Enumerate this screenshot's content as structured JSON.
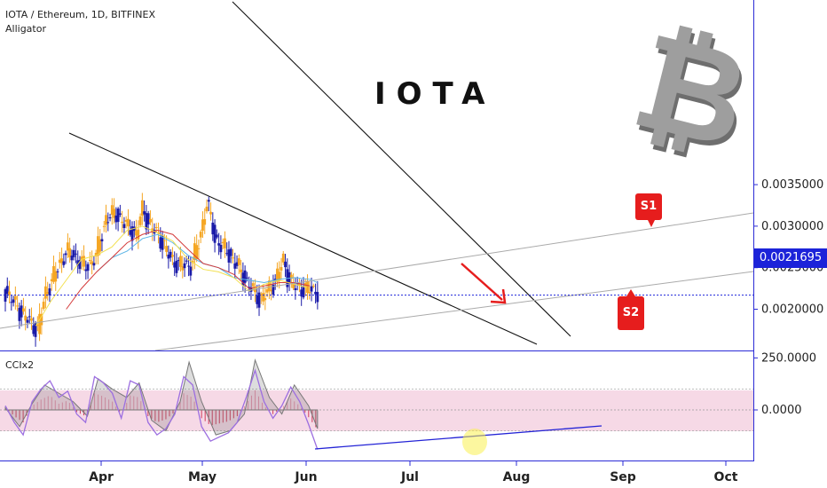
{
  "header": {
    "symbol": "IOTA / Ethereum, 1D, BITFINEX",
    "indicator": "Alligator"
  },
  "watermark_text": "IOTA",
  "btc_symbol": "₿",
  "annotations": {
    "s1": "S1",
    "s2": "S2"
  },
  "colors": {
    "bull": "#f5a623",
    "bear": "#1a1aa8",
    "alligator_jaw": "#5ab4e6",
    "alligator_teeth": "#d43c3c",
    "alligator_lips": "#f2e050",
    "axis": "#2b2bd6",
    "tag": "#e61d1d",
    "cci_band": "#f6d9e6"
  },
  "chart_data": [
    {
      "type": "candlestick",
      "title": "IOTA / Ethereum, 1D, BITFINEX",
      "ylim": [
        0.0015,
        0.0039
      ],
      "yticks": [
        "0.0035000",
        "0.0030000",
        "0.0025000",
        "0.0020000"
      ],
      "ytick_values": [
        0.0035,
        0.003,
        0.0025,
        0.002
      ],
      "x_labels": [
        "Apr",
        "May",
        "Jun",
        "Jul",
        "Aug",
        "Sep",
        "Oct"
      ],
      "last_price": "0.0021695",
      "last_price_value": 0.0021695,
      "key_closes": [
        {
          "day": 0,
          "value": 0.00222
        },
        {
          "day": 5,
          "value": 0.00205
        },
        {
          "day": 10,
          "value": 0.0019
        },
        {
          "day": 16,
          "value": 0.00175
        },
        {
          "day": 20,
          "value": 0.0022
        },
        {
          "day": 25,
          "value": 0.00245
        },
        {
          "day": 30,
          "value": 0.0027
        },
        {
          "day": 35,
          "value": 0.00262
        },
        {
          "day": 40,
          "value": 0.0025
        },
        {
          "day": 45,
          "value": 0.00265
        },
        {
          "day": 50,
          "value": 0.0031
        },
        {
          "day": 55,
          "value": 0.00315
        },
        {
          "day": 60,
          "value": 0.003
        },
        {
          "day": 65,
          "value": 0.0029
        },
        {
          "day": 68,
          "value": 0.0032
        },
        {
          "day": 72,
          "value": 0.003
        },
        {
          "day": 77,
          "value": 0.00285
        },
        {
          "day": 82,
          "value": 0.0026
        },
        {
          "day": 87,
          "value": 0.00253
        },
        {
          "day": 92,
          "value": 0.00253
        },
        {
          "day": 96,
          "value": 0.0028
        },
        {
          "day": 100,
          "value": 0.0033
        },
        {
          "day": 104,
          "value": 0.00285
        },
        {
          "day": 108,
          "value": 0.00275
        },
        {
          "day": 113,
          "value": 0.0026
        },
        {
          "day": 118,
          "value": 0.0024
        },
        {
          "day": 122,
          "value": 0.00225
        },
        {
          "day": 126,
          "value": 0.00212
        },
        {
          "day": 130,
          "value": 0.0022
        },
        {
          "day": 134,
          "value": 0.00235
        },
        {
          "day": 138,
          "value": 0.00258
        },
        {
          "day": 140,
          "value": 0.0024
        },
        {
          "day": 143,
          "value": 0.00228
        },
        {
          "day": 147,
          "value": 0.00225
        },
        {
          "day": 151,
          "value": 0.00224
        },
        {
          "day": 155,
          "value": 0.00221
        }
      ],
      "alligator_jaw": [
        [
          60,
          0.00245
        ],
        [
          70,
          0.00262
        ],
        [
          80,
          0.0027
        ],
        [
          90,
          0.00285
        ],
        [
          100,
          0.0029
        ],
        [
          110,
          0.0028
        ],
        [
          120,
          0.00265
        ],
        [
          130,
          0.00255
        ],
        [
          140,
          0.0025
        ],
        [
          150,
          0.00238
        ],
        [
          160,
          0.00235
        ],
        [
          170,
          0.00232
        ],
        [
          180,
          0.00236
        ],
        [
          190,
          0.00238
        ],
        [
          200,
          0.00236
        ],
        [
          205,
          0.00232
        ]
      ],
      "alligator_teeth": [
        [
          40,
          0.002
        ],
        [
          50,
          0.00225
        ],
        [
          60,
          0.00245
        ],
        [
          70,
          0.00262
        ],
        [
          80,
          0.0028
        ],
        [
          90,
          0.0029
        ],
        [
          100,
          0.00295
        ],
        [
          110,
          0.0029
        ],
        [
          120,
          0.00272
        ],
        [
          130,
          0.00255
        ],
        [
          140,
          0.0025
        ],
        [
          150,
          0.00242
        ],
        [
          160,
          0.00225
        ],
        [
          170,
          0.00228
        ],
        [
          180,
          0.00232
        ],
        [
          190,
          0.00232
        ],
        [
          200,
          0.00228
        ]
      ],
      "alligator_lips": [
        [
          20,
          0.0018
        ],
        [
          30,
          0.0021
        ],
        [
          40,
          0.00235
        ],
        [
          50,
          0.0026
        ],
        [
          60,
          0.00265
        ],
        [
          70,
          0.00275
        ],
        [
          80,
          0.00295
        ],
        [
          90,
          0.003
        ],
        [
          100,
          0.00292
        ],
        [
          110,
          0.00282
        ],
        [
          120,
          0.0026
        ],
        [
          130,
          0.00248
        ],
        [
          140,
          0.00245
        ],
        [
          150,
          0.00238
        ],
        [
          160,
          0.00222
        ],
        [
          170,
          0.0023
        ],
        [
          180,
          0.00235
        ],
        [
          190,
          0.0023
        ],
        [
          198,
          0.00226
        ]
      ]
    },
    {
      "type": "line",
      "title": "CCIx2",
      "ylim": [
        -230,
        260
      ],
      "yticks": [
        "250.0000",
        "0.0000"
      ],
      "ytick_values": [
        250,
        0
      ],
      "band": [
        -100,
        100
      ],
      "cci_fast": [
        {
          "day": 0,
          "value": 20
        },
        {
          "day": 5,
          "value": -60
        },
        {
          "day": 10,
          "value": -120
        },
        {
          "day": 15,
          "value": 40
        },
        {
          "day": 20,
          "value": 100
        },
        {
          "day": 25,
          "value": 140
        },
        {
          "day": 30,
          "value": 60
        },
        {
          "day": 35,
          "value": 90
        },
        {
          "day": 40,
          "value": -20
        },
        {
          "day": 45,
          "value": -60
        },
        {
          "day": 50,
          "value": 160
        },
        {
          "day": 55,
          "value": 130
        },
        {
          "day": 60,
          "value": 80
        },
        {
          "day": 65,
          "value": -40
        },
        {
          "day": 70,
          "value": 140
        },
        {
          "day": 75,
          "value": 120
        },
        {
          "day": 80,
          "value": -60
        },
        {
          "day": 85,
          "value": -120
        },
        {
          "day": 90,
          "value": -90
        },
        {
          "day": 95,
          "value": -20
        },
        {
          "day": 100,
          "value": 160
        },
        {
          "day": 105,
          "value": 120
        },
        {
          "day": 110,
          "value": -80
        },
        {
          "day": 115,
          "value": -150
        },
        {
          "day": 120,
          "value": -130
        },
        {
          "day": 125,
          "value": -110
        },
        {
          "day": 130,
          "value": -60
        },
        {
          "day": 135,
          "value": 60
        },
        {
          "day": 140,
          "value": 190
        },
        {
          "day": 145,
          "value": 40
        },
        {
          "day": 150,
          "value": -40
        },
        {
          "day": 155,
          "value": 20
        },
        {
          "day": 160,
          "value": 110
        },
        {
          "day": 165,
          "value": 40
        },
        {
          "day": 170,
          "value": -70
        },
        {
          "day": 175,
          "value": -190
        }
      ],
      "cci_slow": [
        {
          "day": 0,
          "value": 10
        },
        {
          "day": 8,
          "value": -80
        },
        {
          "day": 15,
          "value": 30
        },
        {
          "day": 22,
          "value": 120
        },
        {
          "day": 30,
          "value": 80
        },
        {
          "day": 38,
          "value": 40
        },
        {
          "day": 46,
          "value": -30
        },
        {
          "day": 52,
          "value": 150
        },
        {
          "day": 60,
          "value": 100
        },
        {
          "day": 68,
          "value": 60
        },
        {
          "day": 75,
          "value": 130
        },
        {
          "day": 82,
          "value": -50
        },
        {
          "day": 90,
          "value": -100
        },
        {
          "day": 98,
          "value": 40
        },
        {
          "day": 103,
          "value": 230
        },
        {
          "day": 110,
          "value": 40
        },
        {
          "day": 118,
          "value": -120
        },
        {
          "day": 126,
          "value": -100
        },
        {
          "day": 134,
          "value": -20
        },
        {
          "day": 140,
          "value": 240
        },
        {
          "day": 148,
          "value": 60
        },
        {
          "day": 155,
          "value": -20
        },
        {
          "day": 162,
          "value": 120
        },
        {
          "day": 170,
          "value": 20
        },
        {
          "day": 175,
          "value": -90
        }
      ]
    }
  ]
}
